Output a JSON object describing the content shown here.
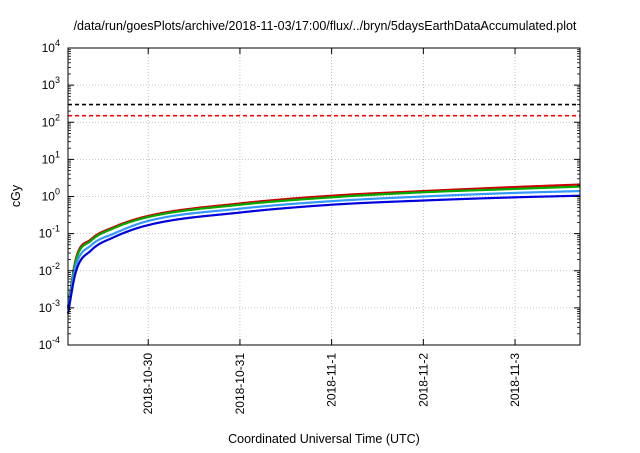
{
  "chart_data": {
    "type": "line",
    "title": "/data/run/goesPlots/archive/2018-11-03/17:00/flux/../bryn/5daysEarthDataAccumulated.plot",
    "xlabel": "Coordinated Universal Time (UTC)",
    "ylabel": "cGy",
    "yscale": "log",
    "ylim": [
      0.0001,
      10000
    ],
    "xlim": [
      "2018-10-29T03:00",
      "2018-11-03T17:00"
    ],
    "x_ticks": [
      "2018-10-30",
      "2018-10-31",
      "2018-11-1",
      "2018-11-2",
      "2018-11-3"
    ],
    "y_ticks": [
      {
        "value": 0.0001,
        "base": "10",
        "exp": "-4"
      },
      {
        "value": 0.001,
        "base": "10",
        "exp": "-3"
      },
      {
        "value": 0.01,
        "base": "10",
        "exp": "-2"
      },
      {
        "value": 0.1,
        "base": "10",
        "exp": "-1"
      },
      {
        "value": 1,
        "base": "10",
        "exp": "0"
      },
      {
        "value": 10,
        "base": "10",
        "exp": "1"
      },
      {
        "value": 100,
        "base": "10",
        "exp": "2"
      },
      {
        "value": 1000,
        "base": "10",
        "exp": "3"
      },
      {
        "value": 10000,
        "base": "10",
        "exp": "4"
      }
    ],
    "grid": true,
    "legend": "none",
    "reference_lines": [
      {
        "y": 300,
        "color": "#000000",
        "style": "dashed"
      },
      {
        "y": 150,
        "color": "#ff0000",
        "style": "dashed"
      }
    ],
    "series": [
      {
        "color": "#cc0000",
        "x": [
          "2018-10-29T03:00",
          "2018-10-29T05:00",
          "2018-10-29T09:00",
          "2018-10-29T15:00",
          "2018-10-30T00:00",
          "2018-10-31T00:00",
          "2018-11-01T00:00",
          "2018-11-02T00:00",
          "2018-11-03T00:00",
          "2018-11-03T17:00"
        ],
        "values": [
          0.001,
          0.02,
          0.07,
          0.15,
          0.3,
          0.65,
          1.05,
          1.4,
          1.8,
          2.1
        ]
      },
      {
        "color": "#00aa00",
        "x": [
          "2018-10-29T03:00",
          "2018-10-29T05:00",
          "2018-10-29T09:00",
          "2018-10-29T15:00",
          "2018-10-30T00:00",
          "2018-10-31T00:00",
          "2018-11-01T00:00",
          "2018-11-02T00:00",
          "2018-11-03T00:00",
          "2018-11-03T17:00"
        ],
        "values": [
          0.001,
          0.018,
          0.064,
          0.14,
          0.28,
          0.6,
          0.95,
          1.3,
          1.6,
          1.85
        ]
      },
      {
        "color": "#3399ff",
        "x": [
          "2018-10-29T03:00",
          "2018-10-29T05:00",
          "2018-10-29T09:00",
          "2018-10-29T15:00",
          "2018-10-30T00:00",
          "2018-10-31T00:00",
          "2018-11-01T00:00",
          "2018-11-02T00:00",
          "2018-11-03T00:00",
          "2018-11-03T17:00"
        ],
        "values": [
          0.0009,
          0.013,
          0.048,
          0.1,
          0.22,
          0.47,
          0.75,
          1.0,
          1.25,
          1.4
        ]
      },
      {
        "color": "#0000dd",
        "x": [
          "2018-10-29T03:00",
          "2018-10-29T05:00",
          "2018-10-29T09:00",
          "2018-10-29T15:00",
          "2018-10-30T00:00",
          "2018-10-31T00:00",
          "2018-11-01T00:00",
          "2018-11-02T00:00",
          "2018-11-03T00:00",
          "2018-11-03T17:00"
        ],
        "values": [
          0.0007,
          0.009,
          0.035,
          0.08,
          0.17,
          0.37,
          0.6,
          0.78,
          0.95,
          1.05
        ]
      }
    ]
  }
}
